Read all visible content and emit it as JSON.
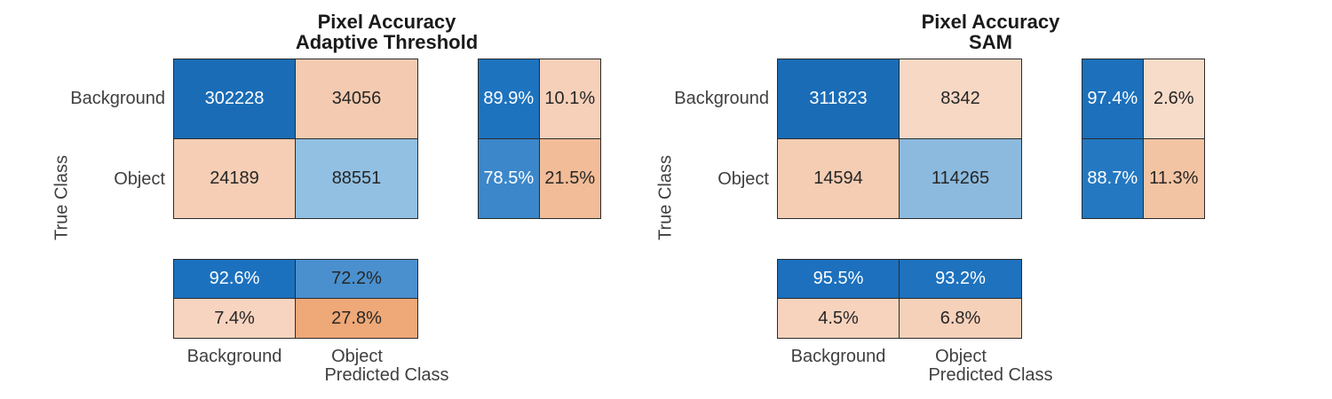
{
  "figure": {
    "background": "#ffffff",
    "grid_border_color": "#2b2b2b",
    "dark_text_color": "#262626",
    "light_text_color": "#ffffff"
  },
  "charts": [
    {
      "title_line1": "Pixel Accuracy",
      "title_line2": "Adaptive Threshold",
      "y_axis_label": "True Class",
      "x_axis_label": "Predicted Class",
      "y_tick_labels": [
        "Background",
        "Object"
      ],
      "x_tick_labels": [
        "Background",
        "Object"
      ],
      "main_cells": [
        {
          "text": "302228",
          "bg": "#1a6cb6",
          "fg": "#ffffff"
        },
        {
          "text": "34056",
          "bg": "#f4cbb0",
          "fg": "#262626"
        },
        {
          "text": "24189",
          "bg": "#f5ceb5",
          "fg": "#262626"
        },
        {
          "text": "88551",
          "bg": "#92c0e3",
          "fg": "#262626"
        }
      ],
      "row_summary_cells": [
        {
          "text": "89.9%",
          "bg": "#1e73bf",
          "fg": "#ffffff"
        },
        {
          "text": "10.1%",
          "bg": "#f6d0b9",
          "fg": "#262626"
        },
        {
          "text": "78.5%",
          "bg": "#3b87ca",
          "fg": "#ffffff"
        },
        {
          "text": "21.5%",
          "bg": "#f1bc97",
          "fg": "#262626"
        }
      ],
      "col_summary_cells": [
        {
          "text": "92.6%",
          "bg": "#1c71be",
          "fg": "#ffffff"
        },
        {
          "text": "72.2%",
          "bg": "#4a90cf",
          "fg": "#262626"
        },
        {
          "text": "7.4%",
          "bg": "#f7d4bf",
          "fg": "#262626"
        },
        {
          "text": "27.8%",
          "bg": "#efa877",
          "fg": "#262626"
        }
      ]
    },
    {
      "title_line1": "Pixel Accuracy",
      "title_line2": "SAM",
      "y_axis_label": "True Class",
      "x_axis_label": "Predicted Class",
      "y_tick_labels": [
        "Background",
        "Object"
      ],
      "x_tick_labels": [
        "Background",
        "Object"
      ],
      "main_cells": [
        {
          "text": "311823",
          "bg": "#1a6cb6",
          "fg": "#ffffff"
        },
        {
          "text": "8342",
          "bg": "#f7d8c5",
          "fg": "#262626"
        },
        {
          "text": "14594",
          "bg": "#f5cdb3",
          "fg": "#262626"
        },
        {
          "text": "114265",
          "bg": "#8bbade",
          "fg": "#262626"
        }
      ],
      "row_summary_cells": [
        {
          "text": "97.4%",
          "bg": "#1c70bc",
          "fg": "#ffffff"
        },
        {
          "text": "2.6%",
          "bg": "#f8dcca",
          "fg": "#262626"
        },
        {
          "text": "88.7%",
          "bg": "#2478c1",
          "fg": "#ffffff"
        },
        {
          "text": "11.3%",
          "bg": "#f3c4a3",
          "fg": "#262626"
        }
      ],
      "col_summary_cells": [
        {
          "text": "95.5%",
          "bg": "#1c70bd",
          "fg": "#ffffff"
        },
        {
          "text": "93.2%",
          "bg": "#1e72be",
          "fg": "#ffffff"
        },
        {
          "text": "4.5%",
          "bg": "#f7d3bd",
          "fg": "#262626"
        },
        {
          "text": "6.8%",
          "bg": "#f6d1ba",
          "fg": "#262626"
        }
      ]
    }
  ],
  "chart_data": [
    {
      "type": "heatmap",
      "subtype": "confusion-matrix-with-summaries",
      "title": "Pixel Accuracy\nAdaptive Threshold",
      "classes": [
        "Background",
        "Object"
      ],
      "xlabel": "Predicted Class",
      "ylabel": "True Class",
      "matrix_counts_rows_true_by_pred": [
        [
          302228,
          34056
        ],
        [
          24189,
          88551
        ]
      ],
      "row_normalized_pct": [
        [
          89.9,
          10.1
        ],
        [
          78.5,
          21.5
        ]
      ],
      "col_normalized_pct": [
        [
          92.6,
          72.2
        ],
        [
          7.4,
          27.8
        ]
      ],
      "diagonal_color": "#1a6cb6",
      "offdiagonal_color": "#efa877",
      "legend": "none",
      "grid": "cell-borders"
    },
    {
      "type": "heatmap",
      "subtype": "confusion-matrix-with-summaries",
      "title": "Pixel Accuracy\nSAM",
      "classes": [
        "Background",
        "Object"
      ],
      "xlabel": "Predicted Class",
      "ylabel": "True Class",
      "matrix_counts_rows_true_by_pred": [
        [
          311823,
          8342
        ],
        [
          14594,
          114265
        ]
      ],
      "row_normalized_pct": [
        [
          97.4,
          2.6
        ],
        [
          88.7,
          11.3
        ]
      ],
      "col_normalized_pct": [
        [
          95.5,
          93.2
        ],
        [
          4.5,
          6.8
        ]
      ],
      "diagonal_color": "#1a6cb6",
      "offdiagonal_color": "#efa877",
      "legend": "none",
      "grid": "cell-borders"
    }
  ]
}
